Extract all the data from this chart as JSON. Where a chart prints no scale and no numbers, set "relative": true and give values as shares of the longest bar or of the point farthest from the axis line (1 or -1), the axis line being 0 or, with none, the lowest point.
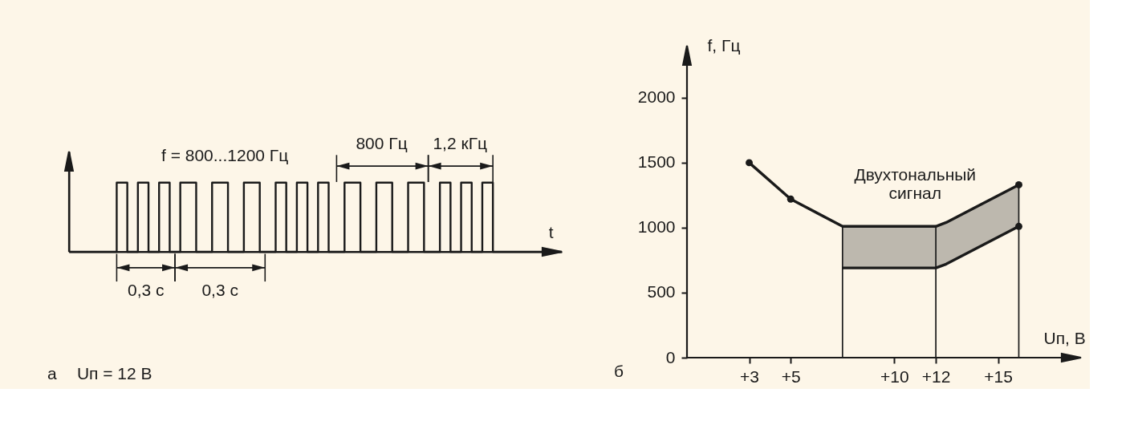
{
  "chart_data": [
    {
      "type": "step",
      "relative": true,
      "xlabel": "t",
      "categories": [
        null,
        null,
        null,
        null,
        null,
        null,
        null,
        null,
        null,
        null,
        null,
        null,
        null,
        null,
        null,
        null,
        null,
        null,
        null,
        null,
        null,
        null,
        null,
        null,
        null,
        null,
        null,
        null,
        null,
        null,
        null,
        null,
        null,
        null,
        null,
        null,
        null,
        null,
        null,
        null,
        null,
        null,
        null,
        null,
        null,
        null,
        null,
        null,
        null,
        null,
        null,
        null,
        null,
        null,
        null,
        null,
        null,
        null,
        null,
        null,
        null,
        null,
        null,
        null,
        null,
        null,
        null,
        null,
        null,
        null,
        null,
        null,
        null,
        null,
        null,
        null,
        null,
        null,
        null,
        null,
        null,
        null,
        null,
        null,
        null,
        null,
        null,
        null,
        null,
        null,
        null,
        null,
        null,
        null
      ],
      "series": [
        {
          "color": "#1a1a1a",
          "values": [
            0,
            0,
            0,
            0,
            0,
            0,
            0,
            0,
            0,
            1,
            1,
            0,
            0,
            1,
            1,
            0,
            0,
            1,
            1,
            0,
            0,
            1,
            1,
            1,
            0,
            0,
            0,
            1,
            1,
            1,
            0,
            0,
            0,
            1,
            1,
            1,
            0,
            0,
            0,
            1,
            1,
            0,
            0,
            1,
            1,
            0,
            0,
            1,
            1,
            0,
            0,
            0,
            1,
            1,
            1,
            0,
            0,
            0,
            1,
            1,
            1,
            0,
            0,
            0,
            1,
            1,
            1,
            0,
            0,
            0,
            1,
            1,
            0,
            0,
            1,
            1,
            0,
            0,
            1,
            1,
            0,
            0,
            0,
            0,
            0,
            0,
            0,
            0,
            0,
            0,
            0,
            0,
            0,
            0
          ]
        }
      ],
      "annotations": [
        "f = 800...1200 Гц",
        "800 Гц",
        "1,2 кГц",
        "0,3 с",
        "0,3 с",
        "а",
        "Uп = 12 В"
      ]
    },
    {
      "type": "line",
      "xlabel": "Uп, В",
      "ylabel": "f, Гц",
      "xlim": [
        0,
        19
      ],
      "xticks": [
        {
          "value": 3,
          "label": "+3"
        },
        {
          "value": 5,
          "label": "+5"
        },
        {
          "value": 10,
          "label": "+10"
        },
        {
          "value": 12,
          "label": "+12"
        },
        {
          "value": 15,
          "label": "+15"
        }
      ],
      "ylim": [
        0,
        2400
      ],
      "yticks": [
        0,
        500,
        1000,
        1500,
        2000
      ],
      "series": [
        {
          "type": "line",
          "color": "#1a1a1a",
          "x": [
            7.5,
            12,
            12.5,
            16
          ],
          "values": [
            690,
            690,
            720,
            1010
          ],
          "lower": [
            690,
            690,
            720,
            1010
          ],
          "upper": [
            1010,
            1010,
            1040,
            1330
          ]
        },
        {
          "type": "line",
          "color": "#1a1a1a",
          "x": [
            3,
            5,
            7.5,
            12,
            12.5,
            16
          ],
          "values": [
            1500,
            1220,
            1010,
            1010,
            1040,
            1330
          ]
        },
        {
          "type": "line",
          "color": "#1a1a1a",
          "x": [
            7.5,
            7.5
          ],
          "values": [
            0,
            1010
          ]
        },
        {
          "type": "line",
          "color": "#1a1a1a",
          "x": [
            12,
            12
          ],
          "values": [
            0,
            1010
          ]
        },
        {
          "type": "line",
          "color": "#1a1a1a",
          "x": [
            16,
            16
          ],
          "values": [
            0,
            1330
          ]
        },
        {
          "type": "scatter",
          "color": "#1a1a1a",
          "marker": "circle",
          "x": [
            3,
            5,
            16,
            16
          ],
          "values": [
            1500,
            1220,
            1330,
            1010
          ]
        }
      ],
      "annotations": [
        "б",
        "Двухтональный\nсигнал"
      ]
    }
  ]
}
